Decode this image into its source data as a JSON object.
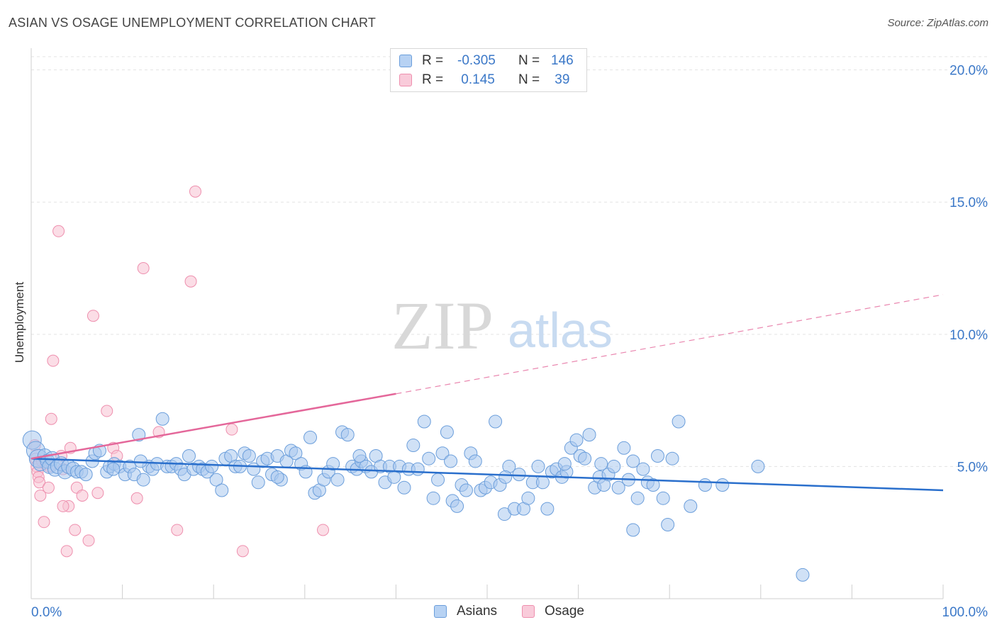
{
  "title": "ASIAN VS OSAGE UNEMPLOYMENT CORRELATION CHART",
  "source": "Source: ZipAtlas.com",
  "watermark": {
    "zip": "ZIP",
    "atlas": "atlas"
  },
  "legend_top": [
    {
      "r_label": "R = ",
      "r_value": "-0.305",
      "n_label": "N = ",
      "n_value": "146"
    },
    {
      "r_label": "R = ",
      "r_value": " 0.145",
      "n_label": "N = ",
      "n_value": " 39"
    }
  ],
  "colors": {
    "asian_fill": "#a9c9ef",
    "asian_stroke": "#6b9edb",
    "asian_line": "#2a6fcc",
    "osage_fill": "#f7c1d2",
    "osage_stroke": "#ee8fae",
    "osage_line": "#e4679a",
    "grid": "#e3e3e3",
    "axis_text": "#3b78c8"
  },
  "chart_data": {
    "type": "scatter",
    "title": "ASIAN VS OSAGE UNEMPLOYMENT CORRELATION CHART",
    "xlabel": "",
    "ylabel": "Unemployment",
    "xlim": [
      0,
      100
    ],
    "ylim": [
      0,
      20.5
    ],
    "x_tick_labels": [
      "0.0%",
      "100.0%"
    ],
    "y_ticks": [
      5,
      10,
      15,
      20
    ],
    "y_tick_labels": [
      "5.0%",
      "10.0%",
      "15.0%",
      "20.0%"
    ],
    "grid": true,
    "legend": [
      "Asians",
      "Osage"
    ],
    "series": [
      {
        "name": "Asians",
        "trend": {
          "x0": 0,
          "y0": 5.3,
          "x1": 100,
          "y1": 4.1
        },
        "points": [
          [
            0.1,
            6.0
          ],
          [
            0.5,
            5.6
          ],
          [
            0.8,
            5.3
          ],
          [
            1.0,
            5.1
          ],
          [
            1.5,
            5.4
          ],
          [
            1.8,
            5.2
          ],
          [
            2.0,
            5.0
          ],
          [
            2.3,
            5.3
          ],
          [
            2.6,
            4.9
          ],
          [
            2.9,
            5.0
          ],
          [
            3.3,
            5.1
          ],
          [
            3.7,
            4.8
          ],
          [
            4.1,
            5.0
          ],
          [
            4.6,
            4.9
          ],
          [
            5.0,
            4.8
          ],
          [
            5.5,
            4.8
          ],
          [
            6.0,
            4.7
          ],
          [
            6.7,
            5.2
          ],
          [
            7.0,
            5.5
          ],
          [
            7.5,
            5.6
          ],
          [
            8.3,
            4.8
          ],
          [
            8.6,
            5.0
          ],
          [
            9.1,
            5.1
          ],
          [
            9.7,
            5.0
          ],
          [
            10.3,
            4.7
          ],
          [
            10.8,
            5.0
          ],
          [
            11.3,
            4.7
          ],
          [
            11.8,
            6.2
          ],
          [
            12.3,
            4.5
          ],
          [
            12.9,
            5.0
          ],
          [
            13.3,
            4.9
          ],
          [
            13.8,
            5.1
          ],
          [
            14.4,
            6.8
          ],
          [
            14.9,
            5.0
          ],
          [
            15.4,
            5.0
          ],
          [
            15.9,
            5.1
          ],
          [
            16.4,
            4.9
          ],
          [
            16.8,
            4.7
          ],
          [
            17.3,
            5.4
          ],
          [
            17.8,
            4.9
          ],
          [
            18.4,
            5.0
          ],
          [
            18.8,
            4.9
          ],
          [
            19.3,
            4.8
          ],
          [
            19.8,
            5.0
          ],
          [
            20.3,
            4.5
          ],
          [
            20.9,
            4.1
          ],
          [
            21.3,
            5.3
          ],
          [
            21.9,
            5.4
          ],
          [
            22.4,
            5.0
          ],
          [
            22.9,
            5.0
          ],
          [
            23.4,
            5.5
          ],
          [
            23.9,
            5.4
          ],
          [
            24.4,
            4.9
          ],
          [
            24.9,
            4.4
          ],
          [
            25.4,
            5.2
          ],
          [
            25.9,
            5.3
          ],
          [
            26.4,
            4.7
          ],
          [
            27.0,
            5.4
          ],
          [
            27.4,
            4.5
          ],
          [
            28.0,
            5.2
          ],
          [
            28.5,
            5.6
          ],
          [
            29.0,
            5.5
          ],
          [
            29.6,
            5.1
          ],
          [
            30.1,
            4.8
          ],
          [
            30.6,
            6.1
          ],
          [
            31.1,
            4.0
          ],
          [
            31.6,
            4.1
          ],
          [
            32.1,
            4.5
          ],
          [
            32.6,
            4.8
          ],
          [
            33.1,
            5.1
          ],
          [
            33.6,
            4.5
          ],
          [
            34.1,
            6.3
          ],
          [
            34.7,
            6.2
          ],
          [
            35.2,
            5.0
          ],
          [
            35.7,
            4.9
          ],
          [
            36.2,
            5.2
          ],
          [
            36.7,
            5.0
          ],
          [
            37.3,
            4.8
          ],
          [
            37.8,
            5.4
          ],
          [
            38.3,
            5.0
          ],
          [
            38.8,
            4.4
          ],
          [
            39.3,
            5.0
          ],
          [
            39.8,
            4.6
          ],
          [
            40.4,
            5.0
          ],
          [
            40.9,
            4.2
          ],
          [
            41.4,
            4.9
          ],
          [
            41.9,
            5.8
          ],
          [
            42.4,
            4.9
          ],
          [
            43.1,
            6.7
          ],
          [
            43.6,
            5.3
          ],
          [
            44.1,
            3.8
          ],
          [
            44.6,
            4.5
          ],
          [
            45.1,
            5.5
          ],
          [
            45.6,
            6.3
          ],
          [
            46.2,
            3.7
          ],
          [
            46.7,
            3.5
          ],
          [
            47.2,
            4.3
          ],
          [
            47.7,
            4.1
          ],
          [
            48.2,
            5.5
          ],
          [
            48.7,
            5.2
          ],
          [
            49.3,
            4.1
          ],
          [
            49.8,
            4.2
          ],
          [
            50.4,
            4.4
          ],
          [
            50.9,
            6.7
          ],
          [
            51.4,
            4.3
          ],
          [
            51.9,
            3.2
          ],
          [
            52.4,
            5.0
          ],
          [
            53.0,
            3.4
          ],
          [
            53.5,
            4.7
          ],
          [
            54.0,
            3.4
          ],
          [
            54.5,
            3.8
          ],
          [
            55.0,
            4.4
          ],
          [
            55.6,
            5.0
          ],
          [
            56.1,
            4.4
          ],
          [
            56.6,
            3.4
          ],
          [
            57.1,
            4.8
          ],
          [
            57.6,
            4.9
          ],
          [
            58.2,
            4.6
          ],
          [
            58.7,
            4.8
          ],
          [
            59.2,
            5.7
          ],
          [
            59.8,
            6.0
          ],
          [
            60.2,
            5.4
          ],
          [
            60.7,
            5.3
          ],
          [
            61.2,
            6.2
          ],
          [
            61.8,
            4.2
          ],
          [
            62.3,
            4.6
          ],
          [
            62.8,
            4.3
          ],
          [
            63.3,
            4.7
          ],
          [
            63.9,
            5.0
          ],
          [
            64.4,
            4.2
          ],
          [
            65.0,
            5.7
          ],
          [
            65.5,
            4.5
          ],
          [
            66.0,
            5.2
          ],
          [
            66.5,
            3.8
          ],
          [
            67.1,
            4.9
          ],
          [
            67.6,
            4.4
          ],
          [
            68.2,
            4.3
          ],
          [
            68.7,
            5.4
          ],
          [
            69.3,
            3.8
          ],
          [
            69.8,
            2.8
          ],
          [
            70.3,
            5.3
          ],
          [
            72.3,
            3.5
          ],
          [
            73.9,
            4.3
          ],
          [
            75.8,
            4.3
          ],
          [
            79.7,
            5.0
          ],
          [
            84.6,
            0.9
          ],
          [
            66.0,
            2.6
          ],
          [
            71.0,
            6.7
          ],
          [
            52.0,
            4.6
          ],
          [
            36.0,
            5.4
          ],
          [
            46.0,
            5.2
          ],
          [
            27.0,
            4.6
          ],
          [
            9.0,
            4.9
          ],
          [
            12.0,
            5.2
          ],
          [
            58.5,
            5.1
          ],
          [
            62.5,
            5.1
          ]
        ]
      },
      {
        "name": "Osage",
        "trend": {
          "x0": 0,
          "y0": 5.3,
          "x1": 40,
          "y1": 7.75,
          "dash_to_x": 100,
          "dash_to_y": 11.5
        },
        "points": [
          [
            0.4,
            5.8
          ],
          [
            0.5,
            5.3
          ],
          [
            0.6,
            5.0
          ],
          [
            0.7,
            4.8
          ],
          [
            0.8,
            4.6
          ],
          [
            0.9,
            4.4
          ],
          [
            1.0,
            3.9
          ],
          [
            1.2,
            5.2
          ],
          [
            1.4,
            2.9
          ],
          [
            1.6,
            5.1
          ],
          [
            1.9,
            4.2
          ],
          [
            2.0,
            5.0
          ],
          [
            2.2,
            6.8
          ],
          [
            2.4,
            9.0
          ],
          [
            3.0,
            13.9
          ],
          [
            3.3,
            5.4
          ],
          [
            3.5,
            4.9
          ],
          [
            3.9,
            1.8
          ],
          [
            4.1,
            3.5
          ],
          [
            4.3,
            5.7
          ],
          [
            4.8,
            2.6
          ],
          [
            5.0,
            4.2
          ],
          [
            5.6,
            3.9
          ],
          [
            6.3,
            2.2
          ],
          [
            6.8,
            10.7
          ],
          [
            7.3,
            4.0
          ],
          [
            8.3,
            7.1
          ],
          [
            9.0,
            5.7
          ],
          [
            9.4,
            5.4
          ],
          [
            11.6,
            3.8
          ],
          [
            12.3,
            12.5
          ],
          [
            14.0,
            6.3
          ],
          [
            16.0,
            2.6
          ],
          [
            17.5,
            12.0
          ],
          [
            18.0,
            15.4
          ],
          [
            22.0,
            6.4
          ],
          [
            23.2,
            1.8
          ],
          [
            32.0,
            2.6
          ],
          [
            3.5,
            3.5
          ]
        ]
      }
    ]
  },
  "legend_bottom": [
    {
      "label": "Asians"
    },
    {
      "label": "Osage"
    }
  ]
}
